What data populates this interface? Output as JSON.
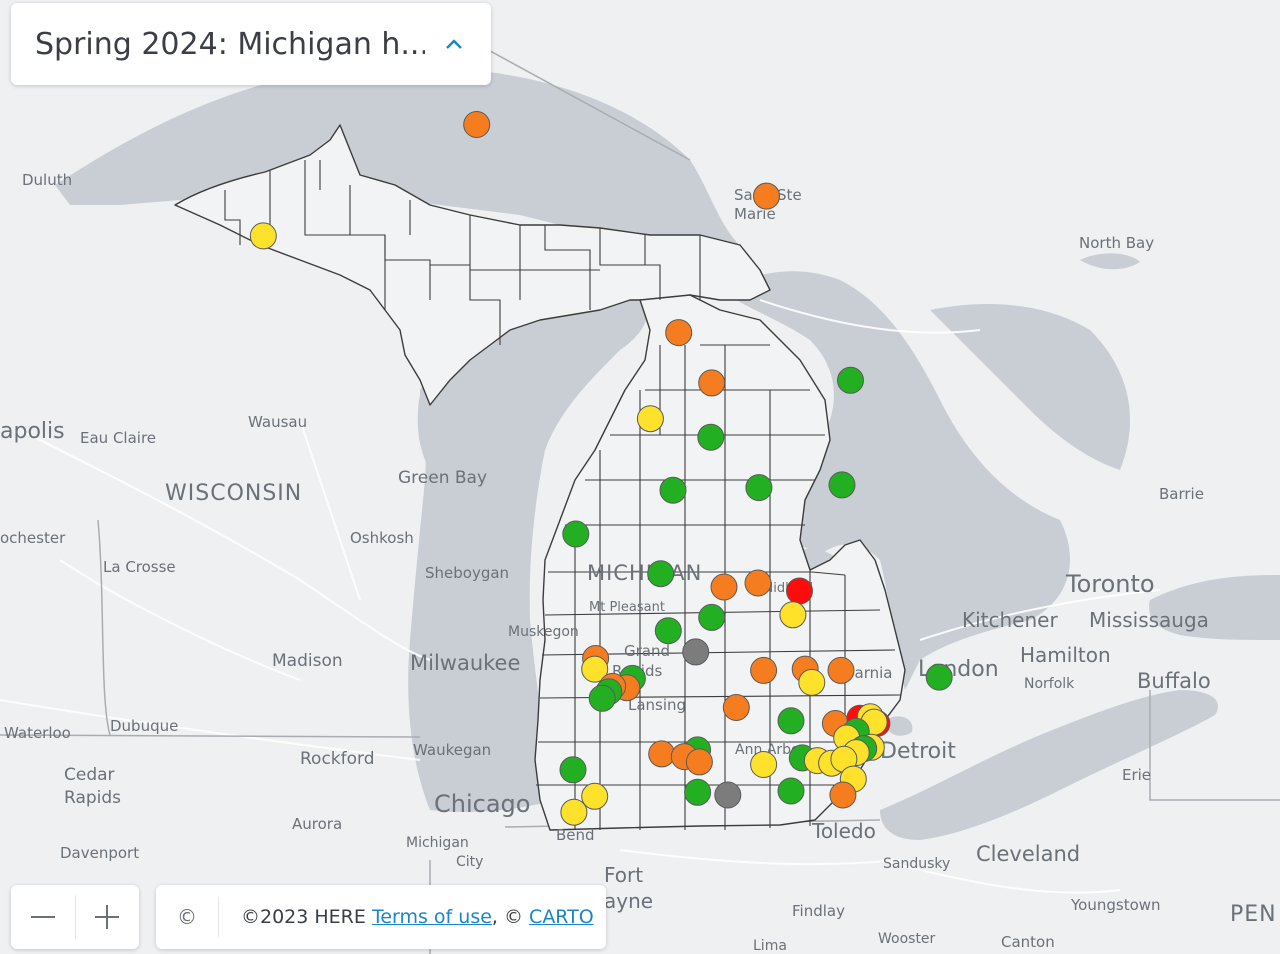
{
  "title": "Spring 2024: Michigan h...",
  "controls": {
    "zoom_out_symbol": "—",
    "zoom_in_symbol": "+",
    "copyright_symbol": "©"
  },
  "attribution": {
    "text": "©2023 HERE ",
    "terms_label": "Terms of use",
    "separator": ", © ",
    "carto_label": "CARTO"
  },
  "colors": {
    "water": "#c9ced4",
    "land": "#eef0f2",
    "county_line": "#3c3c3c",
    "green": "#22b022",
    "orange": "#f57c1f",
    "yellow": "#fde12a",
    "red": "#ff0d0d",
    "gray": "#7c7c7c"
  },
  "labels": [
    {
      "text": "Duluth"
    },
    {
      "text": "apolis"
    },
    {
      "text": "Eau Claire"
    },
    {
      "text": "Wausau"
    },
    {
      "text": "WISCONSIN"
    },
    {
      "text": "Green Bay"
    },
    {
      "text": "Oshkosh"
    },
    {
      "text": "ochester"
    },
    {
      "text": "La Crosse"
    },
    {
      "text": "Sheboygan"
    },
    {
      "text": "Madison"
    },
    {
      "text": "Milwaukee"
    },
    {
      "text": "Waterloo"
    },
    {
      "text": "Dubuque"
    },
    {
      "text": "Rockford"
    },
    {
      "text": "Waukegan"
    },
    {
      "text": "Cedar"
    },
    {
      "text": "Rapids"
    },
    {
      "text": "Chicago"
    },
    {
      "text": "Aurora"
    },
    {
      "text": "Davenport"
    },
    {
      "text": "Michigan"
    },
    {
      "text": "City"
    },
    {
      "text": "Bend"
    },
    {
      "text": "Fort"
    },
    {
      "text": "ayne"
    },
    {
      "text": "Sault Ste"
    },
    {
      "text": "Marie"
    },
    {
      "text": "North Bay"
    },
    {
      "text": "Barrie"
    },
    {
      "text": "Toronto"
    },
    {
      "text": "Kitchener"
    },
    {
      "text": "Mississauga"
    },
    {
      "text": "Hamilton"
    },
    {
      "text": "London"
    },
    {
      "text": "Norfolk"
    },
    {
      "text": "Buffalo"
    },
    {
      "text": "Sarnia"
    },
    {
      "text": "Detroit"
    },
    {
      "text": "Erie"
    },
    {
      "text": "Toledo"
    },
    {
      "text": "Sandusky"
    },
    {
      "text": "Cleveland"
    },
    {
      "text": "Findlay"
    },
    {
      "text": "Youngstown"
    },
    {
      "text": "Lima"
    },
    {
      "text": "Wooster"
    },
    {
      "text": "Canton"
    },
    {
      "text": "PEN"
    },
    {
      "text": "MICHIGAN"
    },
    {
      "text": "Mt Pleasant"
    },
    {
      "text": "Midland"
    },
    {
      "text": "Muskegon"
    },
    {
      "text": "Grand"
    },
    {
      "text": "Rapids"
    },
    {
      "text": "Lansing"
    },
    {
      "text": "Ann Arbor"
    }
  ],
  "sites": [
    {
      "c": "yellow",
      "lat": 47.42,
      "lon": -88.57
    },
    {
      "c": "orange",
      "lat": 46.96,
      "lon": -87.44
    },
    {
      "c": "orange",
      "lat": 46.42,
      "lon": -84.37
    },
    {
      "c": "yellow",
      "lat": 46.12,
      "lon": -89.7
    },
    {
      "c": "orange",
      "lat": 45.39,
      "lon": -85.3
    },
    {
      "c": "orange",
      "lat": 45.01,
      "lon": -84.95
    },
    {
      "c": "green",
      "lat": 45.03,
      "lon": -83.48
    },
    {
      "c": "yellow",
      "lat": 44.74,
      "lon": -85.6
    },
    {
      "c": "green",
      "lat": 44.6,
      "lon": -84.96
    },
    {
      "c": "green",
      "lat": 44.2,
      "lon": -85.36
    },
    {
      "c": "green",
      "lat": 44.22,
      "lon": -84.45
    },
    {
      "c": "green",
      "lat": 44.24,
      "lon": -83.57
    },
    {
      "c": "green",
      "lat": 43.87,
      "lon": -86.39
    },
    {
      "c": "green",
      "lat": 43.57,
      "lon": -85.49
    },
    {
      "c": "orange",
      "lat": 43.47,
      "lon": -84.82
    },
    {
      "c": "orange",
      "lat": 43.5,
      "lon": -84.46
    },
    {
      "c": "red",
      "lat": 43.44,
      "lon": -84.02
    },
    {
      "c": "yellow",
      "lat": 43.26,
      "lon": -84.09
    },
    {
      "c": "green",
      "lat": 43.24,
      "lon": -84.95
    },
    {
      "c": "green",
      "lat": 43.14,
      "lon": -85.41
    },
    {
      "c": "gray",
      "lat": 42.98,
      "lon": -85.12
    },
    {
      "c": "orange",
      "lat": 42.93,
      "lon": -86.18
    },
    {
      "c": "yellow",
      "lat": 42.85,
      "lon": -86.19
    },
    {
      "c": "orange",
      "lat": 42.84,
      "lon": -84.4
    },
    {
      "c": "orange",
      "lat": 42.85,
      "lon": -83.96
    },
    {
      "c": "orange",
      "lat": 42.84,
      "lon": -83.58
    },
    {
      "c": "yellow",
      "lat": 42.75,
      "lon": -83.89
    },
    {
      "c": "green",
      "lat": 42.79,
      "lon": -82.54
    },
    {
      "c": "green",
      "lat": 42.78,
      "lon": -85.79
    },
    {
      "c": "orange",
      "lat": 42.71,
      "lon": -85.85
    },
    {
      "c": "orange",
      "lat": 42.72,
      "lon": -86.0
    },
    {
      "c": "green",
      "lat": 42.68,
      "lon": -86.04
    },
    {
      "c": "green",
      "lat": 42.63,
      "lon": -86.11
    },
    {
      "c": "orange",
      "lat": 42.56,
      "lon": -84.69
    },
    {
      "c": "green",
      "lat": 42.46,
      "lon": -84.11
    },
    {
      "c": "orange",
      "lat": 42.44,
      "lon": -83.64
    },
    {
      "c": "red",
      "lat": 42.48,
      "lon": -83.38
    },
    {
      "c": "red",
      "lat": 42.44,
      "lon": -83.2
    },
    {
      "c": "yellow",
      "lat": 42.49,
      "lon": -83.27
    },
    {
      "c": "yellow",
      "lat": 42.45,
      "lon": -83.23
    },
    {
      "c": "green",
      "lat": 42.38,
      "lon": -83.42
    },
    {
      "c": "yellow",
      "lat": 42.33,
      "lon": -83.52
    },
    {
      "c": "yellow",
      "lat": 42.26,
      "lon": -83.26
    },
    {
      "c": "green",
      "lat": 42.25,
      "lon": -83.34
    },
    {
      "c": "yellow",
      "lat": 42.22,
      "lon": -83.42
    },
    {
      "c": "green",
      "lat": 42.24,
      "lon": -85.1
    },
    {
      "c": "orange",
      "lat": 42.21,
      "lon": -85.48
    },
    {
      "c": "orange",
      "lat": 42.19,
      "lon": -85.24
    },
    {
      "c": "orange",
      "lat": 42.15,
      "lon": -85.08
    },
    {
      "c": "yellow",
      "lat": 42.13,
      "lon": -84.4
    },
    {
      "c": "green",
      "lat": 42.18,
      "lon": -83.99
    },
    {
      "c": "yellow",
      "lat": 42.16,
      "lon": -83.83
    },
    {
      "c": "yellow",
      "lat": 42.14,
      "lon": -83.68
    },
    {
      "c": "yellow",
      "lat": 42.17,
      "lon": -83.55
    },
    {
      "c": "green",
      "lat": 42.09,
      "lon": -86.42
    },
    {
      "c": "yellow",
      "lat": 42.02,
      "lon": -83.45
    },
    {
      "c": "green",
      "lat": 41.92,
      "lon": -85.1
    },
    {
      "c": "gray",
      "lat": 41.9,
      "lon": -84.78
    },
    {
      "c": "green",
      "lat": 41.93,
      "lon": -84.11
    },
    {
      "c": "orange",
      "lat": 41.9,
      "lon": -83.56
    },
    {
      "c": "yellow",
      "lat": 41.89,
      "lon": -86.19
    },
    {
      "c": "yellow",
      "lat": 41.77,
      "lon": -86.41
    }
  ]
}
